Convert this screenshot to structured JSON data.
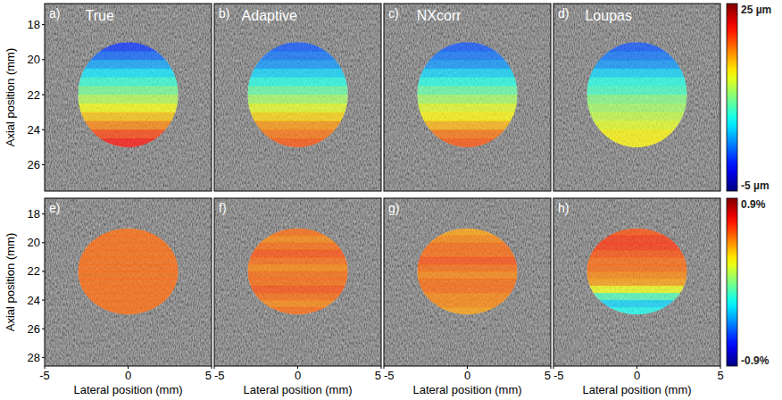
{
  "chart_data": [
    {
      "type": "heatmap",
      "xlim": [
        -5,
        5
      ],
      "ylim": [
        16.8,
        27.5
      ],
      "yticks": [
        18,
        20,
        22,
        24,
        26
      ],
      "y_label": "Axial position (mm)",
      "tick_labels": "y",
      "inclusion": {
        "center": [
          0,
          22
        ],
        "radius": 3
      },
      "cell_axial": [
        19.25,
        19.75,
        20.25,
        20.75,
        21.25,
        21.75,
        22.25,
        22.75,
        23.25,
        23.75,
        24.25,
        24.75
      ],
      "colorbar": {
        "range": [
          -5,
          25
        ],
        "ticks": [
          {
            "value": 25,
            "label": "25 µm"
          },
          {
            "value": -5,
            "label": "-5 µm"
          }
        ]
      },
      "panels": [
        {
          "label": "a)",
          "title": "True",
          "cell_values": [
            0,
            1.5,
            3.5,
            5.5,
            7.5,
            9.5,
            11.5,
            13.5,
            15.5,
            17.5,
            19.5,
            21
          ]
        },
        {
          "label": "b)",
          "title": "Adaptive",
          "cell_values": [
            1,
            2,
            3,
            5,
            7,
            9,
            11,
            13,
            15,
            17,
            18,
            19
          ]
        },
        {
          "label": "c)",
          "title": "NXcorr",
          "cell_values": [
            1,
            2,
            3,
            5,
            7,
            9,
            11,
            13,
            14,
            16,
            18,
            19
          ]
        },
        {
          "label": "d)",
          "title": "Loupas",
          "cell_values": [
            1,
            2,
            3,
            5,
            7,
            8,
            10,
            11,
            12,
            13,
            14,
            14
          ]
        }
      ]
    },
    {
      "type": "heatmap",
      "xlim": [
        -5,
        5
      ],
      "ylim": [
        16.9,
        28.6
      ],
      "xticks": [
        -5,
        0,
        5
      ],
      "yticks": [
        18,
        20,
        22,
        24,
        26,
        28
      ],
      "x_label": "Lateral position (mm)",
      "y_label": "Axial position (mm)",
      "tick_labels": true,
      "inclusion": {
        "center": [
          0,
          22
        ],
        "radius": 3
      },
      "cell_axial": [
        19.25,
        19.75,
        20.25,
        20.75,
        21.25,
        21.75,
        22.25,
        22.75,
        23.25,
        23.75,
        24.25,
        24.75
      ],
      "colorbar": {
        "range": [
          -0.9,
          0.9
        ],
        "ticks": [
          {
            "value": 0.9,
            "label": "0.9%"
          },
          {
            "value": -0.9,
            "label": "-0.9%"
          }
        ]
      },
      "panels": [
        {
          "label": "e)",
          "cell_values": [
            0.5,
            0.5,
            0.5,
            0.5,
            0.5,
            0.5,
            0.5,
            0.5,
            0.5,
            0.5,
            0.5,
            0.5
          ]
        },
        {
          "label": "f)",
          "cell_values": [
            0.5,
            0.45,
            0.5,
            0.55,
            0.5,
            0.45,
            0.5,
            0.5,
            0.55,
            0.5,
            0.45,
            0.5
          ]
        },
        {
          "label": "g)",
          "cell_values": [
            0.4,
            0.45,
            0.5,
            0.5,
            0.55,
            0.5,
            0.45,
            0.5,
            0.5,
            0.45,
            0.45,
            0.4
          ]
        },
        {
          "label": "h)",
          "cell_values": [
            0.55,
            0.6,
            0.6,
            0.55,
            0.5,
            0.5,
            0.45,
            0.4,
            0.2,
            -0.1,
            -0.3,
            -0.2
          ]
        }
      ]
    }
  ]
}
